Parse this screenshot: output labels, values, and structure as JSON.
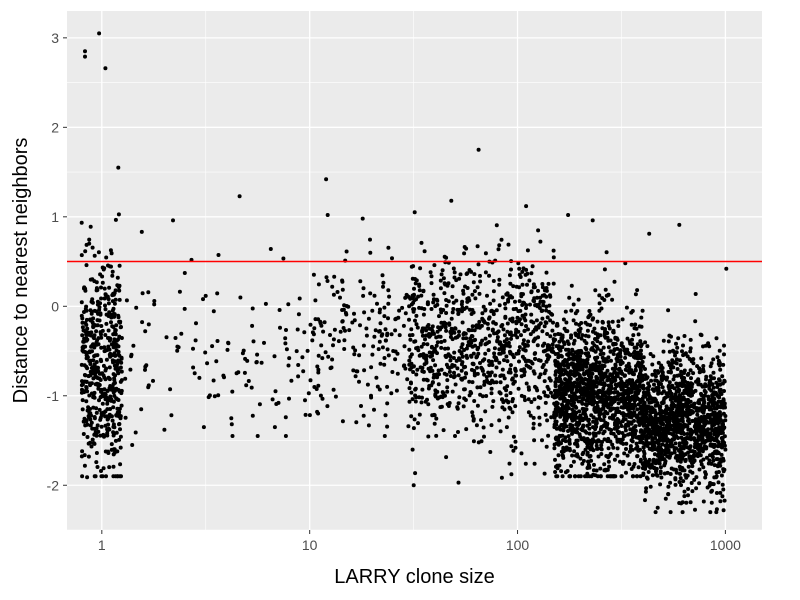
{
  "chart_data": {
    "type": "scatter",
    "title": "",
    "xlabel": "LARRY clone size",
    "ylabel": "Distance to nearest neighbors",
    "x_scale": "log10",
    "xlim": [
      0.68,
      1500
    ],
    "ylim": [
      -2.5,
      3.3
    ],
    "x_ticks": [
      1,
      10,
      100,
      1000
    ],
    "x_tick_labels": [
      "1",
      "10",
      "100",
      "1000"
    ],
    "y_ticks": [
      -2,
      -1,
      0,
      1,
      2,
      3
    ],
    "y_tick_labels": [
      "-2",
      "-1",
      "0",
      "1",
      "2",
      "3"
    ],
    "grid": true,
    "hline": {
      "y": 0.5,
      "color": "#ff0000"
    },
    "point_color": "#000000",
    "background": "#ebebeb",
    "clusters": [
      {
        "x_range": [
          0.8,
          1.25
        ],
        "y_mean": -0.7,
        "y_sd": 0.6,
        "y_range": [
          -1.9,
          2.6
        ],
        "count": 520
      },
      {
        "x_range": [
          1.25,
          10
        ],
        "y_mean": -0.55,
        "y_sd": 0.45,
        "y_range": [
          -1.45,
          0.95
        ],
        "count": 120
      },
      {
        "x_range": [
          10,
          30
        ],
        "y_mean": -0.4,
        "y_sd": 0.45,
        "y_range": [
          -1.45,
          1.4
        ],
        "count": 180
      },
      {
        "x_range": [
          30,
          150
        ],
        "y_mean": -0.45,
        "y_sd": 0.5,
        "y_range": [
          -2.0,
          1.2
        ],
        "count": 900
      },
      {
        "x_range": [
          150,
          400
        ],
        "y_mean": -1.0,
        "y_sd": 0.45,
        "y_range": [
          -1.9,
          1.0
        ],
        "count": 1400
      },
      {
        "x_range": [
          400,
          1000
        ],
        "y_mean": -1.3,
        "y_sd": 0.38,
        "y_range": [
          -2.3,
          0.95
        ],
        "count": 1300
      }
    ],
    "notable_points": [
      {
        "x": 0.97,
        "y": 3.05
      },
      {
        "x": 0.83,
        "y": 2.85
      },
      {
        "x": 0.83,
        "y": 2.79
      },
      {
        "x": 1.04,
        "y": 2.66
      },
      {
        "x": 1.2,
        "y": 1.55
      },
      {
        "x": 65,
        "y": 1.75
      },
      {
        "x": 12,
        "y": 1.42
      },
      {
        "x": 4.6,
        "y": 1.23
      },
      {
        "x": 2.2,
        "y": 0.96
      },
      {
        "x": 18,
        "y": 0.98
      },
      {
        "x": 32,
        "y": 1.05
      },
      {
        "x": 48,
        "y": 1.18
      },
      {
        "x": 110,
        "y": 1.12
      },
      {
        "x": 175,
        "y": 1.02
      },
      {
        "x": 230,
        "y": 0.96
      },
      {
        "x": 600,
        "y": 0.91
      },
      {
        "x": 430,
        "y": 0.81
      },
      {
        "x": 6.5,
        "y": 0.64
      },
      {
        "x": 1.4,
        "y": -1.55
      },
      {
        "x": 0.85,
        "y": -1.91
      },
      {
        "x": 3.1,
        "y": -1.35
      },
      {
        "x": 6.8,
        "y": -1.35
      },
      {
        "x": 52,
        "y": -1.97
      },
      {
        "x": 135,
        "y": -1.87
      },
      {
        "x": 680,
        "y": -2.19
      },
      {
        "x": 980,
        "y": -2.28
      },
      {
        "x": 1010,
        "y": 0.42
      },
      {
        "x": 330,
        "y": 0.48
      },
      {
        "x": 9.5,
        "y": -1.05
      },
      {
        "x": 2.0,
        "y": -1.38
      }
    ]
  }
}
